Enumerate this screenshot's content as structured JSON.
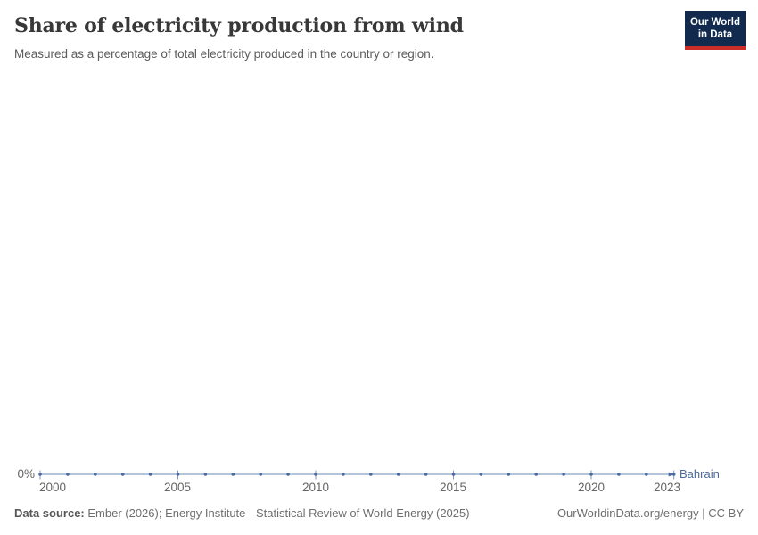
{
  "header": {
    "title": "Share of electricity production from wind",
    "subtitle": "Measured as a percentage of total electricity produced in the country or region.",
    "logo": {
      "line1": "Our World",
      "line2": "in Data"
    }
  },
  "chart_data": {
    "type": "line",
    "title": "Share of electricity production from wind",
    "x": [
      2000,
      2001,
      2002,
      2003,
      2004,
      2005,
      2006,
      2007,
      2008,
      2009,
      2010,
      2011,
      2012,
      2013,
      2014,
      2015,
      2016,
      2017,
      2018,
      2019,
      2020,
      2021,
      2022,
      2023
    ],
    "series": [
      {
        "name": "Bahrain",
        "color": "#4c6a9c",
        "values": [
          0,
          0,
          0,
          0,
          0,
          0,
          0,
          0,
          0,
          0,
          0,
          0,
          0,
          0,
          0,
          0,
          0,
          0,
          0,
          0,
          0,
          0,
          0,
          0
        ]
      }
    ],
    "x_tick_labels": [
      "2000",
      "2005",
      "2010",
      "2015",
      "2020",
      "2023"
    ],
    "x_tick_years": [
      2000,
      2005,
      2010,
      2015,
      2020,
      2023
    ],
    "y_axis": {
      "tick_label": "0%",
      "min": 0
    },
    "grid": false,
    "legend_position": "end-of-line",
    "ylabel": "",
    "xlabel": ""
  },
  "colors": {
    "line": "#9bb0d2",
    "marker": "#4c6a9c",
    "tick": "#7d98c1",
    "axis_text": "#666666",
    "entity_label": "#4c6a9c",
    "logo_bg": "#122a4e",
    "logo_stripe": "#cb2e27"
  },
  "footer": {
    "data_source_label": "Data source:",
    "data_source_text": " Ember (2026); Energy Institute - Statistical Review of World Energy (2025)",
    "right_text": "OurWorldinData.org/energy | CC BY"
  }
}
